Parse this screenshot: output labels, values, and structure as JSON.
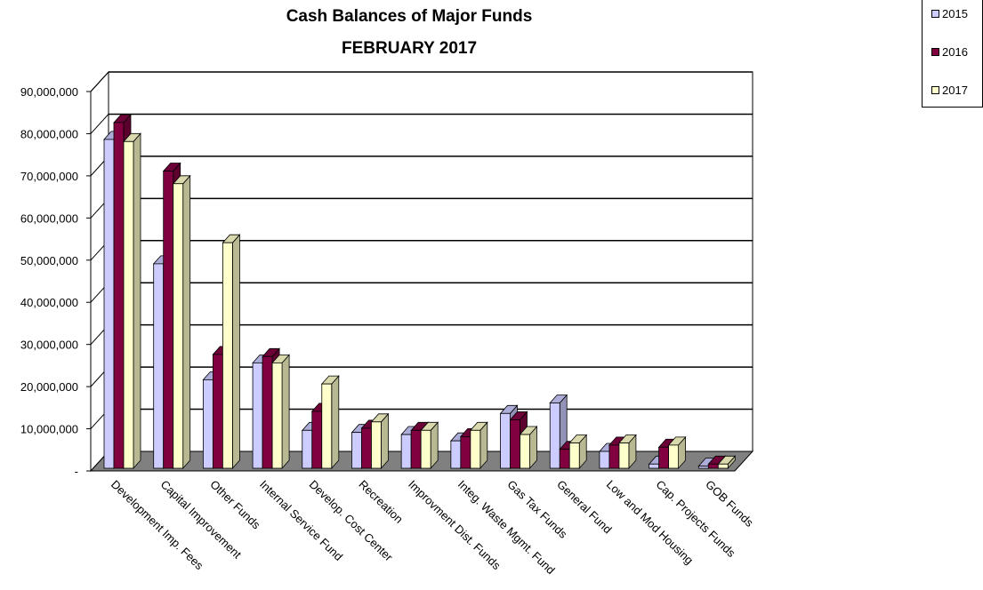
{
  "chart_data": {
    "type": "bar",
    "title": "Cash Balances of Major Funds",
    "subtitle": "FEBRUARY 2017",
    "categories": [
      "Development Imp. Fees",
      "Capital Improvement",
      "Other Funds",
      "Internal Service Fund",
      "Develop. Cost Center",
      "Recreation",
      "Improvment Dist. Funds",
      "Integ. Waste Mgmt. Fund",
      "Gas Tax Funds",
      "General Fund",
      "Low and Mod Housing",
      "Cap. Projects Funds",
      "GOB Funds"
    ],
    "series": [
      {
        "name": "2015",
        "color": "#CCCCFF",
        "values": [
          78000000,
          48500000,
          21000000,
          25000000,
          9000000,
          8500000,
          8000000,
          6500000,
          13000000,
          15500000,
          4000000,
          1000000,
          500000
        ]
      },
      {
        "name": "2016",
        "color": "#800040",
        "values": [
          82000000,
          70500000,
          27000000,
          26500000,
          13500000,
          9500000,
          9000000,
          7500000,
          11500000,
          4500000,
          5500000,
          5000000,
          1000000
        ]
      },
      {
        "name": "2017",
        "color": "#FFFFCC",
        "values": [
          77500000,
          67500000,
          53500000,
          25000000,
          20000000,
          11000000,
          9000000,
          9000000,
          8000000,
          6000000,
          6000000,
          5500000,
          1000000
        ]
      }
    ],
    "yticks": [
      "-",
      "10,000,000",
      "20,000,000",
      "30,000,000",
      "40,000,000",
      "50,000,000",
      "60,000,000",
      "70,000,000",
      "80,000,000",
      "90,000,000"
    ],
    "ylim": [
      0,
      90000000
    ],
    "grid": true,
    "legend_position": "top-right",
    "chart_style": "3D clustered column"
  }
}
